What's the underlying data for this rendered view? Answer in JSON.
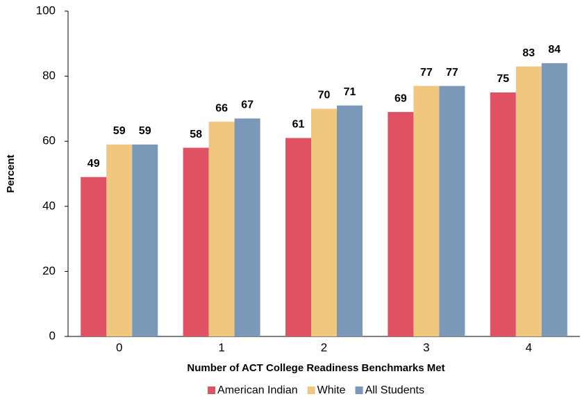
{
  "chart_data": {
    "type": "bar",
    "x_label": "Number of ACT College Readiness Benchmarks Met",
    "y_label": "Percent",
    "categories": [
      "0",
      "1",
      "2",
      "3",
      "4"
    ],
    "series": [
      {
        "name": "American Indian",
        "color": "#e05263",
        "values": [
          49,
          58,
          61,
          69,
          75
        ]
      },
      {
        "name": "White",
        "color": "#f0c77e",
        "values": [
          59,
          66,
          70,
          77,
          83
        ]
      },
      {
        "name": "All Students",
        "color": "#7b98b8",
        "values": [
          59,
          67,
          71,
          77,
          84
        ]
      }
    ],
    "ylim": [
      0,
      100
    ],
    "yticks": [
      0,
      20,
      40,
      60,
      80,
      100
    ],
    "grid": false,
    "legend": "bottom"
  }
}
